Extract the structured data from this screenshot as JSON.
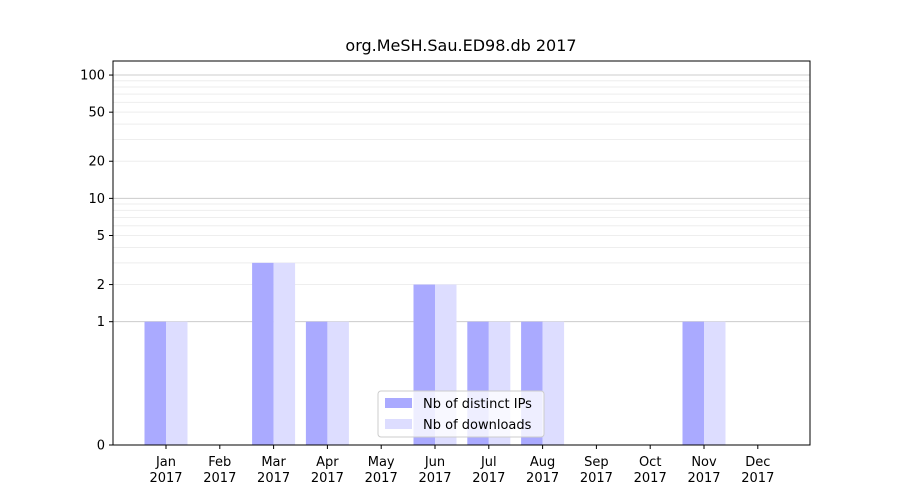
{
  "chart_data": {
    "type": "bar",
    "title": "org.MeSH.Sau.ED98.db 2017",
    "xlabel": "",
    "ylabel": "",
    "y_scale": "symlog",
    "ylim": [
      0,
      130
    ],
    "y_ticks": [
      0,
      1,
      2,
      5,
      10,
      20,
      50,
      100
    ],
    "y_tick_labels": [
      "0",
      "1",
      "2",
      "5",
      "10",
      "20",
      "50",
      "100"
    ],
    "categories": [
      [
        "Jan",
        "2017"
      ],
      [
        "Feb",
        "2017"
      ],
      [
        "Mar",
        "2017"
      ],
      [
        "Apr",
        "2017"
      ],
      [
        "May",
        "2017"
      ],
      [
        "Jun",
        "2017"
      ],
      [
        "Jul",
        "2017"
      ],
      [
        "Aug",
        "2017"
      ],
      [
        "Sep",
        "2017"
      ],
      [
        "Oct",
        "2017"
      ],
      [
        "Nov",
        "2017"
      ],
      [
        "Dec",
        "2017"
      ]
    ],
    "series": [
      {
        "name": "Nb of distinct IPs",
        "color": "#aaaaff",
        "values": [
          1,
          0,
          3,
          1,
          0,
          2,
          1,
          1,
          0,
          0,
          1,
          0
        ]
      },
      {
        "name": "Nb of downloads",
        "color": "#ddddff",
        "values": [
          1,
          0,
          3,
          1,
          0,
          2,
          1,
          1,
          0,
          0,
          1,
          0
        ]
      }
    ],
    "grid": true,
    "legend_position": "lower-center"
  }
}
